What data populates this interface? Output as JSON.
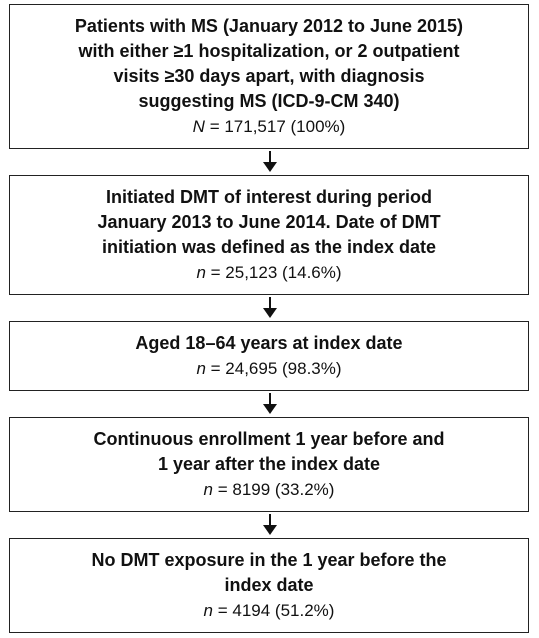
{
  "nodes": [
    {
      "lines": [
        "Patients with MS (January 2012 to June 2015)",
        "with either ≥1 hospitalization, or 2 outpatient",
        "visits ≥30 days apart, with diagnosis",
        "suggesting MS (ICD-9-CM 340)"
      ],
      "stat_var": "N",
      "stat": "= 171,517 (100%)"
    },
    {
      "lines": [
        "Initiated DMT of interest during period",
        "January 2013 to June 2014. Date of DMT",
        "initiation was defined as the index date"
      ],
      "stat_var": "n",
      "stat": "= 25,123 (14.6%)"
    },
    {
      "lines": [
        "Aged 18–64 years at index date"
      ],
      "stat_var": "n",
      "stat": "= 24,695 (98.3%)"
    },
    {
      "lines": [
        "Continuous enrollment 1 year before and",
        "1 year after the index date"
      ],
      "stat_var": "n",
      "stat": "= 8199 (33.2%)"
    },
    {
      "lines": [
        "No DMT exposure in the 1 year before the",
        "index date"
      ],
      "stat_var": "n",
      "stat": "= 4194 (51.2%)"
    }
  ]
}
